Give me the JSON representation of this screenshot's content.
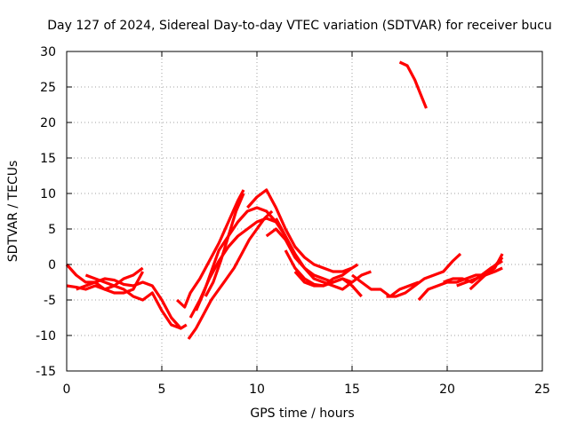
{
  "chart_data": {
    "type": "line",
    "title": "Day 127 of 2024, Sidereal Day-to-day VTEC variation (SDTVAR) for receiver bucu",
    "xlabel": "GPS time / hours",
    "ylabel": "SDTVAR / TECUs",
    "xlim": [
      0,
      25
    ],
    "ylim": [
      -15,
      30
    ],
    "xticks": [
      0,
      5,
      10,
      15,
      20,
      25
    ],
    "yticks": [
      -15,
      -10,
      -5,
      0,
      5,
      10,
      15,
      20,
      25,
      30
    ],
    "grid": true,
    "colors": {
      "series": "#ff0000",
      "grid": "#a0a0a0",
      "axes": "#000000"
    },
    "series": [
      {
        "name": "track-1",
        "x": [
          0.0,
          0.5,
          1.0,
          1.5,
          2.0,
          2.5,
          3.0,
          3.5,
          4.0,
          4.5,
          5.0,
          5.5,
          6.0,
          6.3
        ],
        "y": [
          0.0,
          -1.5,
          -2.5,
          -2.5,
          -2.0,
          -2.2,
          -2.8,
          -3.0,
          -2.5,
          -3.0,
          -5.0,
          -7.5,
          -9.0,
          -8.5
        ]
      },
      {
        "name": "track-2",
        "x": [
          0.0,
          0.5,
          1.0,
          1.5,
          2.0,
          2.5,
          3.0,
          3.5,
          4.0
        ],
        "y": [
          -3.0,
          -3.2,
          -3.5,
          -3.0,
          -3.5,
          -3.0,
          -2.0,
          -1.5,
          -0.5
        ]
      },
      {
        "name": "track-3",
        "x": [
          1.0,
          1.5,
          2.0,
          2.5,
          3.0,
          3.5,
          4.0,
          4.5,
          5.0,
          5.5,
          6.0
        ],
        "y": [
          -1.5,
          -2.0,
          -2.5,
          -3.0,
          -3.5,
          -4.5,
          -5.0,
          -4.0,
          -6.5,
          -8.5,
          -9.0
        ]
      },
      {
        "name": "track-4",
        "x": [
          0.5,
          1.0,
          1.5,
          2.0,
          2.5,
          3.0,
          3.5,
          4.0
        ],
        "y": [
          -3.5,
          -3.0,
          -2.5,
          -3.5,
          -4.0,
          -4.0,
          -3.5,
          -1.0
        ]
      },
      {
        "name": "track-5",
        "x": [
          5.8,
          6.2,
          6.5,
          7.0,
          7.5,
          8.0,
          8.5,
          9.0,
          9.3
        ],
        "y": [
          -5.0,
          -6.0,
          -4.0,
          -2.0,
          0.5,
          3.0,
          6.0,
          9.0,
          10.5
        ]
      },
      {
        "name": "track-6",
        "x": [
          6.5,
          7.0,
          7.5,
          8.0,
          8.5,
          9.0,
          9.5,
          10.0,
          10.5,
          11.0
        ],
        "y": [
          -7.5,
          -5.0,
          -2.0,
          0.5,
          2.5,
          4.0,
          5.0,
          6.0,
          6.5,
          6.0
        ]
      },
      {
        "name": "track-7",
        "x": [
          6.4,
          6.8,
          7.2,
          7.6,
          8.0,
          8.4,
          8.8,
          9.2,
          9.6,
          10.0,
          10.4,
          10.8
        ],
        "y": [
          -10.5,
          -9.0,
          -7.0,
          -5.0,
          -3.5,
          -2.0,
          -0.5,
          1.5,
          3.5,
          5.0,
          6.5,
          7.5
        ]
      },
      {
        "name": "track-8",
        "x": [
          6.8,
          7.2,
          7.6,
          8.0,
          8.5,
          9.0,
          9.5,
          10.0,
          10.5,
          11.0,
          11.5
        ],
        "y": [
          -6.5,
          -4.0,
          -1.0,
          2.0,
          4.0,
          6.0,
          7.5,
          8.0,
          7.5,
          6.0,
          4.0
        ]
      },
      {
        "name": "track-9",
        "x": [
          7.3,
          7.7,
          8.1,
          8.5,
          8.9,
          9.3
        ],
        "y": [
          -4.5,
          -2.5,
          0.5,
          4.0,
          7.5,
          10.0
        ]
      },
      {
        "name": "track-10",
        "x": [
          9.5,
          10.0,
          10.5,
          11.0,
          11.5,
          12.0,
          12.5,
          13.0,
          13.5,
          14.0,
          14.5,
          15.0,
          15.3
        ],
        "y": [
          8.0,
          9.5,
          10.5,
          8.0,
          5.0,
          2.5,
          1.0,
          0.0,
          -0.5,
          -1.0,
          -1.0,
          -0.5,
          0.0
        ]
      },
      {
        "name": "track-11",
        "x": [
          10.5,
          11.0,
          11.5,
          12.0,
          12.5,
          13.0,
          13.5,
          14.0,
          14.5,
          15.0
        ],
        "y": [
          4.0,
          5.0,
          3.5,
          1.0,
          -0.5,
          -1.5,
          -2.0,
          -2.5,
          -2.0,
          -2.5
        ]
      },
      {
        "name": "track-12",
        "x": [
          11.0,
          11.5,
          12.0,
          12.5,
          13.0,
          13.5,
          14.0,
          14.5,
          15.0,
          15.5,
          16.0
        ],
        "y": [
          6.5,
          4.0,
          1.5,
          -0.5,
          -2.0,
          -2.5,
          -3.0,
          -3.5,
          -2.5,
          -1.5,
          -1.0
        ]
      },
      {
        "name": "track-13",
        "x": [
          11.5,
          12.0,
          12.5,
          13.0,
          13.5,
          14.0,
          14.5,
          15.0,
          15.5
        ],
        "y": [
          2.0,
          -0.5,
          -2.0,
          -2.8,
          -3.0,
          -2.5,
          -2.0,
          -3.0,
          -4.5
        ]
      },
      {
        "name": "track-14",
        "x": [
          12.0,
          12.5,
          13.0,
          13.5,
          14.0,
          14.5,
          15.0
        ],
        "y": [
          -1.0,
          -2.5,
          -3.0,
          -3.0,
          -2.0,
          -1.5,
          -0.5
        ]
      },
      {
        "name": "track-15",
        "x": [
          15.0,
          15.5,
          16.0,
          16.5,
          17.0,
          17.5,
          18.0,
          18.5
        ],
        "y": [
          -1.5,
          -2.5,
          -3.5,
          -3.5,
          -4.5,
          -3.5,
          -3.0,
          -2.5
        ]
      },
      {
        "name": "track-16",
        "x": [
          16.8,
          17.3,
          17.8,
          18.3,
          18.8,
          19.3,
          19.8,
          20.3,
          20.7
        ],
        "y": [
          -4.5,
          -4.5,
          -4.0,
          -3.0,
          -2.0,
          -1.5,
          -1.0,
          0.5,
          1.5
        ]
      },
      {
        "name": "track-17",
        "x": [
          18.5,
          19.0,
          19.5,
          20.0,
          20.5,
          21.0,
          21.5,
          22.0,
          22.5,
          22.9
        ],
        "y": [
          -5.0,
          -3.5,
          -3.0,
          -2.5,
          -2.5,
          -2.0,
          -1.5,
          -1.5,
          -1.0,
          -0.5
        ]
      },
      {
        "name": "track-18",
        "x": [
          19.8,
          20.3,
          20.8,
          21.3,
          21.8,
          22.3,
          22.9
        ],
        "y": [
          -2.5,
          -2.0,
          -2.0,
          -2.5,
          -1.5,
          -0.5,
          0.5
        ]
      },
      {
        "name": "track-19",
        "x": [
          20.5,
          21.0,
          21.5,
          22.0,
          22.5,
          22.9
        ],
        "y": [
          -3.0,
          -2.5,
          -2.0,
          -1.5,
          -0.5,
          1.5
        ]
      },
      {
        "name": "track-20",
        "x": [
          21.2,
          21.6,
          22.0,
          22.4,
          22.9
        ],
        "y": [
          -3.5,
          -2.5,
          -1.5,
          -0.5,
          1.0
        ]
      },
      {
        "name": "track-21",
        "x": [
          17.5,
          17.9,
          18.3,
          18.6,
          18.9
        ],
        "y": [
          28.5,
          28.0,
          26.0,
          24.0,
          22.0
        ]
      }
    ]
  }
}
